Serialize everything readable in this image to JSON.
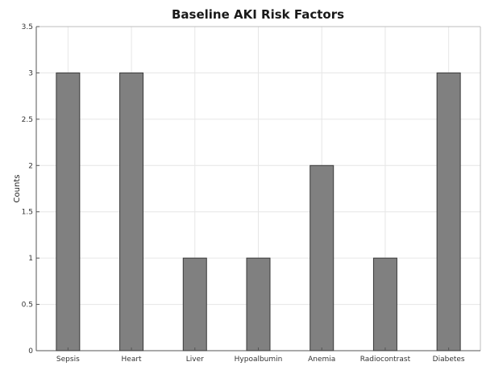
{
  "chart_data": {
    "type": "bar",
    "title": "Baseline AKI Risk Factors",
    "xlabel": "",
    "ylabel": "Counts",
    "categories": [
      "Sepsis",
      "Heart",
      "Liver",
      "Hypoalbumin",
      "Anemia",
      "Radiocontrast",
      "Diabetes"
    ],
    "values": [
      3,
      3,
      1,
      1,
      2,
      1,
      3
    ],
    "ylim": [
      0,
      3.5
    ],
    "yticks": [
      "0",
      "0.5",
      "1",
      "1.5",
      "2",
      "2.5",
      "3",
      "3.5"
    ],
    "grid": true,
    "legend": "none",
    "bar_color": "#808080",
    "bar_edge_color": "#3a3a3a"
  }
}
